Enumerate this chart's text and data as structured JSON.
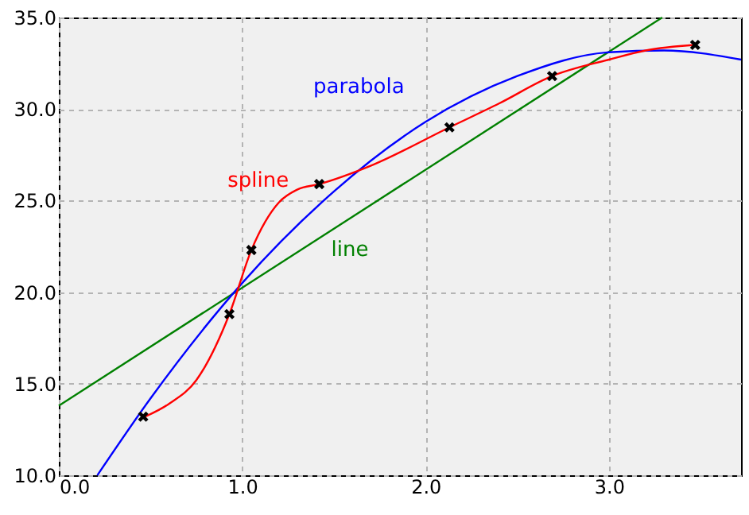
{
  "chart_data": {
    "type": "line",
    "xlim": [
      0,
      3.72
    ],
    "ylim": [
      10,
      35
    ],
    "xticks": [
      {
        "value": 0,
        "label": "0.0"
      },
      {
        "value": 1,
        "label": "1.0"
      },
      {
        "value": 2,
        "label": "2.0"
      },
      {
        "value": 3,
        "label": "3.0"
      }
    ],
    "yticks": [
      {
        "value": 10,
        "label": "10.0"
      },
      {
        "value": 15,
        "label": "15.0"
      },
      {
        "value": 20,
        "label": "20.0"
      },
      {
        "value": 25,
        "label": "25.0"
      },
      {
        "value": 30,
        "label": "30.0"
      },
      {
        "value": 35,
        "label": "35.0"
      }
    ],
    "grid": true,
    "line_style": "solid",
    "series": [
      {
        "name": "line",
        "color": "#008000",
        "x": [
          0,
          3.29
        ],
        "values": [
          13.8,
          35.0
        ]
      },
      {
        "name": "parabola",
        "color": "#0000ff",
        "x": [
          0.21,
          0.5,
          1.0,
          1.5,
          2.0,
          2.5,
          3.0,
          3.3,
          3.72
        ],
        "values": [
          10.0,
          14.2,
          20.5,
          25.5,
          29.3,
          31.8,
          33.1,
          33.2,
          32.7
        ]
      },
      {
        "name": "spline",
        "color": "#ff0000",
        "x": [
          0.47,
          0.6,
          0.75,
          0.93,
          1.05,
          1.2,
          1.3,
          1.42,
          1.7,
          2.13,
          2.4,
          2.69,
          3.0,
          3.2,
          3.47
        ],
        "values": [
          13.2,
          13.9,
          15.2,
          18.8,
          22.3,
          24.9,
          25.6,
          25.9,
          26.9,
          29.0,
          30.3,
          31.8,
          32.7,
          33.2,
          33.5
        ]
      },
      {
        "type": "scatter",
        "color": "#000000",
        "marker": "cross",
        "x": [
          0.46,
          0.93,
          1.05,
          1.42,
          2.13,
          2.69,
          3.47
        ],
        "values": [
          13.2,
          18.8,
          22.3,
          25.9,
          29.0,
          31.8,
          33.5
        ]
      }
    ]
  }
}
